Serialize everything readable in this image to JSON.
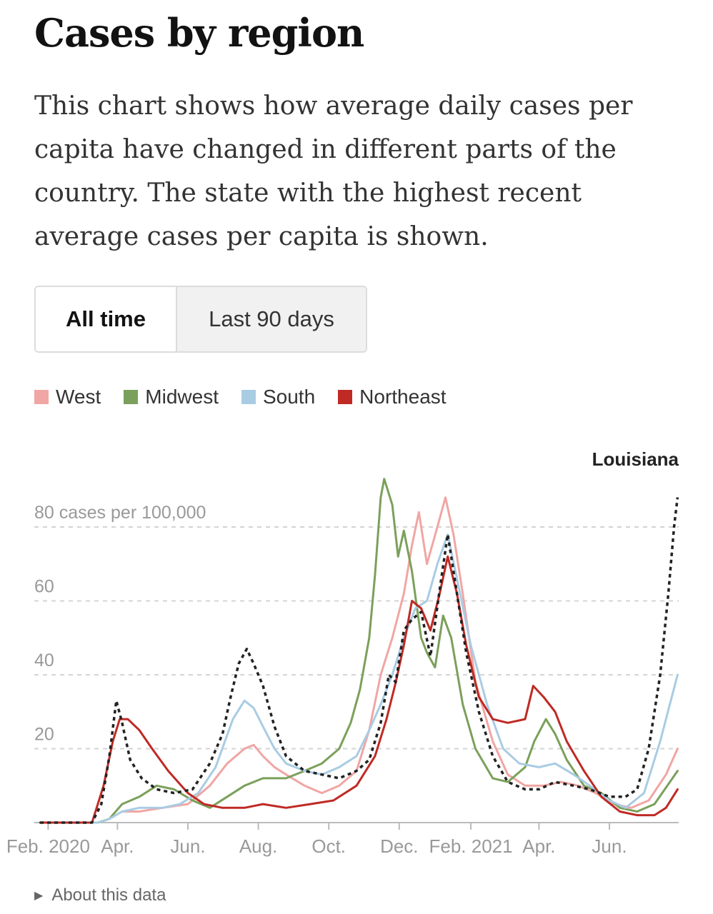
{
  "header": {
    "title": "Cases by region",
    "description": "This chart shows how average daily cases per capita have changed in different parts of the country. The state with the highest recent average cases per capita is shown."
  },
  "tabs": [
    {
      "label": "All time",
      "selected": true
    },
    {
      "label": "Last 90 days",
      "selected": false
    }
  ],
  "footer": {
    "about_label": "About this data",
    "about_icon": "triangle-right-icon"
  },
  "chart_data": {
    "type": "line",
    "title": "",
    "xlabel": "",
    "ylabel": "",
    "y_unit_label": "80 cases per 100,000",
    "ylim": [
      0,
      96
    ],
    "yticks": [
      20,
      40,
      60,
      80
    ],
    "ytick_labels": [
      "20",
      "40",
      "60",
      "80 cases per 100,000"
    ],
    "x_range": [
      "2020-01-20",
      "2021-07-31"
    ],
    "xticks": [
      {
        "date": "2020-02-01",
        "label": "Feb. 2020"
      },
      {
        "date": "2020-04-01",
        "label": "Apr."
      },
      {
        "date": "2020-06-01",
        "label": "Jun."
      },
      {
        "date": "2020-08-01",
        "label": "Aug."
      },
      {
        "date": "2020-10-01",
        "label": "Oct."
      },
      {
        "date": "2020-12-01",
        "label": "Dec."
      },
      {
        "date": "2021-02-01",
        "label": "Feb. 2021"
      },
      {
        "date": "2021-04-01",
        "label": "Apr."
      },
      {
        "date": "2021-06-01",
        "label": "Jun."
      }
    ],
    "grid": true,
    "legend_position": "top-left",
    "series": [
      {
        "name": "West",
        "color": "#f0a6a4",
        "style": "solid",
        "points": [
          [
            "2020-01-25",
            0
          ],
          [
            "2020-03-15",
            0
          ],
          [
            "2020-03-25",
            1
          ],
          [
            "2020-04-05",
            3
          ],
          [
            "2020-04-20",
            3
          ],
          [
            "2020-05-10",
            4
          ],
          [
            "2020-06-01",
            5
          ],
          [
            "2020-06-20",
            10
          ],
          [
            "2020-07-05",
            16
          ],
          [
            "2020-07-20",
            20
          ],
          [
            "2020-07-28",
            21
          ],
          [
            "2020-08-05",
            18
          ],
          [
            "2020-08-15",
            15
          ],
          [
            "2020-08-25",
            13
          ],
          [
            "2020-09-10",
            10
          ],
          [
            "2020-09-25",
            8
          ],
          [
            "2020-10-10",
            10
          ],
          [
            "2020-10-25",
            14
          ],
          [
            "2020-11-05",
            25
          ],
          [
            "2020-11-15",
            40
          ],
          [
            "2020-11-25",
            50
          ],
          [
            "2020-12-05",
            62
          ],
          [
            "2020-12-12",
            75
          ],
          [
            "2020-12-18",
            84
          ],
          [
            "2020-12-25",
            70
          ],
          [
            "2021-01-03",
            80
          ],
          [
            "2021-01-10",
            88
          ],
          [
            "2021-01-17",
            78
          ],
          [
            "2021-01-25",
            62
          ],
          [
            "2021-02-05",
            38
          ],
          [
            "2021-02-20",
            22
          ],
          [
            "2021-03-05",
            13
          ],
          [
            "2021-03-20",
            10
          ],
          [
            "2021-04-05",
            10
          ],
          [
            "2021-04-20",
            11
          ],
          [
            "2021-05-05",
            10
          ],
          [
            "2021-05-20",
            8
          ],
          [
            "2021-06-05",
            5
          ],
          [
            "2021-06-20",
            4
          ],
          [
            "2021-07-05",
            6
          ],
          [
            "2021-07-20",
            13
          ],
          [
            "2021-07-30",
            20
          ]
        ]
      },
      {
        "name": "Midwest",
        "color": "#7ba05b",
        "style": "solid",
        "points": [
          [
            "2020-01-25",
            0
          ],
          [
            "2020-03-15",
            0
          ],
          [
            "2020-03-25",
            1
          ],
          [
            "2020-04-05",
            5
          ],
          [
            "2020-04-20",
            7
          ],
          [
            "2020-05-05",
            10
          ],
          [
            "2020-05-20",
            9
          ],
          [
            "2020-06-05",
            6
          ],
          [
            "2020-06-20",
            4
          ],
          [
            "2020-07-05",
            7
          ],
          [
            "2020-07-20",
            10
          ],
          [
            "2020-08-05",
            12
          ],
          [
            "2020-08-25",
            12
          ],
          [
            "2020-09-10",
            14
          ],
          [
            "2020-09-25",
            16
          ],
          [
            "2020-10-10",
            20
          ],
          [
            "2020-10-20",
            27
          ],
          [
            "2020-10-28",
            36
          ],
          [
            "2020-11-05",
            50
          ],
          [
            "2020-11-10",
            67
          ],
          [
            "2020-11-15",
            88
          ],
          [
            "2020-11-18",
            93
          ],
          [
            "2020-11-25",
            86
          ],
          [
            "2020-11-30",
            72
          ],
          [
            "2020-12-05",
            79
          ],
          [
            "2020-12-12",
            68
          ],
          [
            "2020-12-20",
            50
          ],
          [
            "2020-12-25",
            46
          ],
          [
            "2021-01-01",
            42
          ],
          [
            "2021-01-08",
            56
          ],
          [
            "2021-01-15",
            50
          ],
          [
            "2021-01-25",
            32
          ],
          [
            "2021-02-05",
            20
          ],
          [
            "2021-02-20",
            12
          ],
          [
            "2021-03-05",
            11
          ],
          [
            "2021-03-20",
            15
          ],
          [
            "2021-03-28",
            22
          ],
          [
            "2021-04-07",
            28
          ],
          [
            "2021-04-15",
            24
          ],
          [
            "2021-04-25",
            17
          ],
          [
            "2021-05-10",
            10
          ],
          [
            "2021-05-25",
            8
          ],
          [
            "2021-06-10",
            4
          ],
          [
            "2021-06-25",
            3
          ],
          [
            "2021-07-10",
            5
          ],
          [
            "2021-07-30",
            14
          ]
        ]
      },
      {
        "name": "South",
        "color": "#a9cce3",
        "style": "solid",
        "points": [
          [
            "2020-01-25",
            0
          ],
          [
            "2020-03-15",
            0
          ],
          [
            "2020-03-25",
            1
          ],
          [
            "2020-04-05",
            3
          ],
          [
            "2020-04-20",
            4
          ],
          [
            "2020-05-10",
            4
          ],
          [
            "2020-05-25",
            5
          ],
          [
            "2020-06-10",
            8
          ],
          [
            "2020-06-25",
            15
          ],
          [
            "2020-07-10",
            28
          ],
          [
            "2020-07-20",
            33
          ],
          [
            "2020-07-28",
            31
          ],
          [
            "2020-08-05",
            26
          ],
          [
            "2020-08-15",
            20
          ],
          [
            "2020-08-25",
            16
          ],
          [
            "2020-09-10",
            14
          ],
          [
            "2020-09-25",
            13
          ],
          [
            "2020-10-10",
            15
          ],
          [
            "2020-10-25",
            18
          ],
          [
            "2020-11-05",
            25
          ],
          [
            "2020-11-15",
            32
          ],
          [
            "2020-11-25",
            40
          ],
          [
            "2020-12-05",
            50
          ],
          [
            "2020-12-15",
            58
          ],
          [
            "2020-12-25",
            60
          ],
          [
            "2021-01-03",
            70
          ],
          [
            "2021-01-12",
            78
          ],
          [
            "2021-01-20",
            66
          ],
          [
            "2021-02-01",
            48
          ],
          [
            "2021-02-15",
            32
          ],
          [
            "2021-03-01",
            20
          ],
          [
            "2021-03-15",
            16
          ],
          [
            "2021-04-01",
            15
          ],
          [
            "2021-04-15",
            16
          ],
          [
            "2021-05-01",
            13
          ],
          [
            "2021-05-15",
            10
          ],
          [
            "2021-06-01",
            6
          ],
          [
            "2021-06-15",
            4
          ],
          [
            "2021-07-01",
            8
          ],
          [
            "2021-07-15",
            22
          ],
          [
            "2021-07-30",
            40
          ]
        ]
      },
      {
        "name": "Northeast",
        "color": "#bf2a24",
        "style": "solid",
        "points": [
          [
            "2020-01-25",
            0
          ],
          [
            "2020-03-10",
            0
          ],
          [
            "2020-03-20",
            10
          ],
          [
            "2020-03-28",
            22
          ],
          [
            "2020-04-03",
            28
          ],
          [
            "2020-04-10",
            28
          ],
          [
            "2020-04-20",
            25
          ],
          [
            "2020-05-01",
            20
          ],
          [
            "2020-05-15",
            14
          ],
          [
            "2020-06-01",
            8
          ],
          [
            "2020-06-15",
            5
          ],
          [
            "2020-07-01",
            4
          ],
          [
            "2020-07-20",
            4
          ],
          [
            "2020-08-05",
            5
          ],
          [
            "2020-08-25",
            4
          ],
          [
            "2020-09-15",
            5
          ],
          [
            "2020-10-05",
            6
          ],
          [
            "2020-10-25",
            10
          ],
          [
            "2020-11-10",
            18
          ],
          [
            "2020-11-20",
            28
          ],
          [
            "2020-11-28",
            38
          ],
          [
            "2020-12-05",
            48
          ],
          [
            "2020-12-12",
            60
          ],
          [
            "2020-12-20",
            58
          ],
          [
            "2020-12-28",
            52
          ],
          [
            "2021-01-05",
            62
          ],
          [
            "2021-01-12",
            72
          ],
          [
            "2021-01-20",
            62
          ],
          [
            "2021-01-28",
            48
          ],
          [
            "2021-02-08",
            34
          ],
          [
            "2021-02-20",
            28
          ],
          [
            "2021-03-05",
            27
          ],
          [
            "2021-03-20",
            28
          ],
          [
            "2021-03-27",
            37
          ],
          [
            "2021-04-05",
            34
          ],
          [
            "2021-04-15",
            30
          ],
          [
            "2021-04-25",
            22
          ],
          [
            "2021-05-10",
            14
          ],
          [
            "2021-05-25",
            7
          ],
          [
            "2021-06-10",
            3
          ],
          [
            "2021-06-25",
            2
          ],
          [
            "2021-07-10",
            2
          ],
          [
            "2021-07-20",
            4
          ],
          [
            "2021-07-30",
            9
          ]
        ]
      },
      {
        "name": "Louisiana",
        "color": "#222222",
        "style": "dashed",
        "points": [
          [
            "2020-01-25",
            0
          ],
          [
            "2020-03-10",
            0
          ],
          [
            "2020-03-18",
            5
          ],
          [
            "2020-03-25",
            18
          ],
          [
            "2020-03-31",
            33
          ],
          [
            "2020-04-05",
            27
          ],
          [
            "2020-04-12",
            17
          ],
          [
            "2020-04-22",
            12
          ],
          [
            "2020-05-05",
            9
          ],
          [
            "2020-05-20",
            8
          ],
          [
            "2020-06-05",
            9
          ],
          [
            "2020-06-20",
            16
          ],
          [
            "2020-07-01",
            24
          ],
          [
            "2020-07-08",
            34
          ],
          [
            "2020-07-15",
            43
          ],
          [
            "2020-07-22",
            47
          ],
          [
            "2020-07-28",
            43
          ],
          [
            "2020-08-05",
            37
          ],
          [
            "2020-08-15",
            26
          ],
          [
            "2020-08-25",
            18
          ],
          [
            "2020-09-10",
            14
          ],
          [
            "2020-09-25",
            13
          ],
          [
            "2020-10-10",
            12
          ],
          [
            "2020-10-25",
            14
          ],
          [
            "2020-11-05",
            17
          ],
          [
            "2020-11-15",
            27
          ],
          [
            "2020-11-22",
            40
          ],
          [
            "2020-11-28",
            38
          ],
          [
            "2020-12-05",
            52
          ],
          [
            "2020-12-12",
            55
          ],
          [
            "2020-12-20",
            57
          ],
          [
            "2020-12-28",
            45
          ],
          [
            "2021-01-05",
            63
          ],
          [
            "2021-01-12",
            78
          ],
          [
            "2021-01-20",
            62
          ],
          [
            "2021-01-28",
            46
          ],
          [
            "2021-02-08",
            30
          ],
          [
            "2021-02-20",
            18
          ],
          [
            "2021-03-05",
            11
          ],
          [
            "2021-03-20",
            9
          ],
          [
            "2021-04-01",
            9
          ],
          [
            "2021-04-15",
            11
          ],
          [
            "2021-05-01",
            10
          ],
          [
            "2021-05-15",
            9
          ],
          [
            "2021-06-01",
            7
          ],
          [
            "2021-06-15",
            7
          ],
          [
            "2021-06-25",
            9
          ],
          [
            "2021-07-05",
            20
          ],
          [
            "2021-07-15",
            40
          ],
          [
            "2021-07-22",
            62
          ],
          [
            "2021-07-27",
            80
          ],
          [
            "2021-07-30",
            88
          ]
        ]
      }
    ],
    "annotations": [
      {
        "text": "Louisiana",
        "series": "Louisiana"
      }
    ]
  }
}
